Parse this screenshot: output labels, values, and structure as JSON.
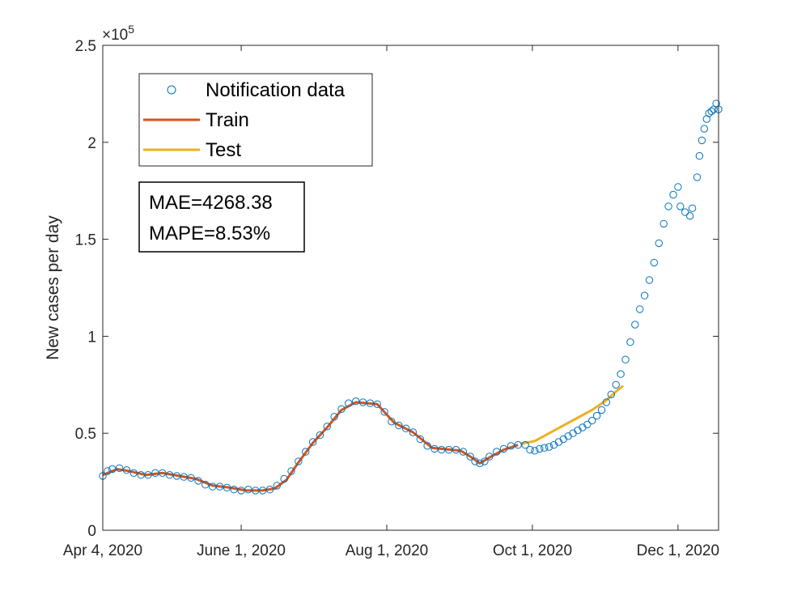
{
  "colors": {
    "notification": "#0072BD",
    "train": "#D95319",
    "test": "#EDB120",
    "axes": "#262626"
  },
  "chart_data": {
    "type": "line",
    "xlabel": "",
    "ylabel": "New cases per day",
    "y_exponent_label": "×10",
    "y_exponent_power": "5",
    "xlim": [
      "2020-04-04",
      "2020-12-18"
    ],
    "ylim": [
      0,
      250000
    ],
    "x_ticks": [
      {
        "date": "2020-04-04",
        "label": "Apr 4, 2020"
      },
      {
        "date": "2020-06-01",
        "label": "June 1, 2020"
      },
      {
        "date": "2020-08-01",
        "label": "Aug 1, 2020"
      },
      {
        "date": "2020-10-01",
        "label": "Oct 1, 2020"
      },
      {
        "date": "2020-12-01",
        "label": "Dec 1, 2020"
      }
    ],
    "y_ticks": [
      {
        "value": 0,
        "label": "0"
      },
      {
        "value": 50000,
        "label": "0.5"
      },
      {
        "value": 100000,
        "label": "1"
      },
      {
        "value": 150000,
        "label": "1.5"
      },
      {
        "value": 200000,
        "label": "2"
      },
      {
        "value": 250000,
        "label": "2.5"
      }
    ],
    "grid": false,
    "legend_position": "top-left",
    "metrics": {
      "mae": "MAE=4268.38",
      "mape": "MAPE=8.53%"
    },
    "series": [
      {
        "name": "Notification data",
        "style": "markers",
        "points": [
          [
            "2020-04-04",
            28000
          ],
          [
            "2020-04-06",
            30500
          ],
          [
            "2020-04-08",
            31500
          ],
          [
            "2020-04-11",
            32000
          ],
          [
            "2020-04-14",
            31000
          ],
          [
            "2020-04-17",
            29500
          ],
          [
            "2020-04-20",
            28500
          ],
          [
            "2020-04-23",
            28500
          ],
          [
            "2020-04-26",
            29500
          ],
          [
            "2020-04-29",
            29500
          ],
          [
            "2020-05-02",
            28500
          ],
          [
            "2020-05-05",
            28000
          ],
          [
            "2020-05-08",
            27500
          ],
          [
            "2020-05-11",
            27000
          ],
          [
            "2020-05-14",
            25500
          ],
          [
            "2020-05-17",
            23500
          ],
          [
            "2020-05-20",
            22500
          ],
          [
            "2020-05-23",
            22500
          ],
          [
            "2020-05-26",
            22000
          ],
          [
            "2020-05-29",
            21000
          ],
          [
            "2020-06-01",
            20500
          ],
          [
            "2020-06-04",
            21000
          ],
          [
            "2020-06-07",
            20500
          ],
          [
            "2020-06-10",
            20500
          ],
          [
            "2020-06-13",
            21000
          ],
          [
            "2020-06-16",
            23000
          ],
          [
            "2020-06-19",
            26500
          ],
          [
            "2020-06-22",
            30500
          ],
          [
            "2020-06-25",
            35500
          ],
          [
            "2020-06-28",
            40500
          ],
          [
            "2020-07-01",
            45500
          ],
          [
            "2020-07-04",
            49000
          ],
          [
            "2020-07-07",
            53500
          ],
          [
            "2020-07-10",
            58500
          ],
          [
            "2020-07-13",
            62500
          ],
          [
            "2020-07-16",
            65500
          ],
          [
            "2020-07-19",
            66500
          ],
          [
            "2020-07-22",
            66000
          ],
          [
            "2020-07-25",
            65500
          ],
          [
            "2020-07-28",
            65000
          ],
          [
            "2020-07-31",
            61000
          ],
          [
            "2020-08-03",
            56000
          ],
          [
            "2020-08-06",
            54000
          ],
          [
            "2020-08-09",
            52500
          ],
          [
            "2020-08-12",
            50500
          ],
          [
            "2020-08-15",
            47000
          ],
          [
            "2020-08-18",
            43500
          ],
          [
            "2020-08-21",
            42000
          ],
          [
            "2020-08-24",
            41500
          ],
          [
            "2020-08-27",
            41500
          ],
          [
            "2020-08-30",
            41500
          ],
          [
            "2020-09-02",
            40500
          ],
          [
            "2020-09-05",
            38000
          ],
          [
            "2020-09-07",
            35500
          ],
          [
            "2020-09-09",
            34500
          ],
          [
            "2020-09-11",
            35500
          ],
          [
            "2020-09-13",
            38000
          ],
          [
            "2020-09-16",
            40500
          ],
          [
            "2020-09-19",
            42000
          ],
          [
            "2020-09-22",
            43500
          ],
          [
            "2020-09-25",
            44000
          ],
          [
            "2020-09-28",
            44000
          ],
          [
            "2020-09-30",
            41500
          ],
          [
            "2020-10-02",
            41000
          ],
          [
            "2020-10-04",
            42000
          ],
          [
            "2020-10-06",
            42500
          ],
          [
            "2020-10-08",
            43000
          ],
          [
            "2020-10-10",
            44000
          ],
          [
            "2020-10-12",
            45500
          ],
          [
            "2020-10-14",
            47000
          ],
          [
            "2020-10-16",
            48500
          ],
          [
            "2020-10-18",
            50000
          ],
          [
            "2020-10-20",
            51500
          ],
          [
            "2020-10-22",
            53000
          ],
          [
            "2020-10-24",
            54500
          ],
          [
            "2020-10-26",
            56500
          ],
          [
            "2020-10-28",
            59000
          ],
          [
            "2020-10-30",
            62000
          ],
          [
            "2020-11-01",
            66000
          ],
          [
            "2020-11-03",
            70000
          ],
          [
            "2020-11-05",
            75000
          ],
          [
            "2020-11-07",
            80500
          ],
          [
            "2020-11-09",
            88000
          ],
          [
            "2020-11-11",
            97000
          ],
          [
            "2020-11-13",
            106000
          ],
          [
            "2020-11-15",
            114000
          ],
          [
            "2020-11-17",
            121000
          ],
          [
            "2020-11-19",
            129000
          ],
          [
            "2020-11-21",
            138000
          ],
          [
            "2020-11-23",
            148000
          ],
          [
            "2020-11-25",
            158000
          ],
          [
            "2020-11-27",
            167000
          ],
          [
            "2020-11-29",
            173000
          ],
          [
            "2020-12-01",
            177000
          ],
          [
            "2020-12-02",
            167000
          ],
          [
            "2020-12-04",
            164000
          ],
          [
            "2020-12-06",
            162000
          ],
          [
            "2020-12-07",
            166000
          ],
          [
            "2020-12-09",
            182000
          ],
          [
            "2020-12-10",
            193000
          ],
          [
            "2020-12-11",
            201000
          ],
          [
            "2020-12-12",
            207000
          ],
          [
            "2020-12-13",
            212000
          ],
          [
            "2020-12-14",
            215000
          ],
          [
            "2020-12-15",
            216000
          ],
          [
            "2020-12-16",
            217000
          ],
          [
            "2020-12-17",
            220000
          ],
          [
            "2020-12-18",
            217000
          ]
        ]
      },
      {
        "name": "Train",
        "style": "line",
        "points": [
          [
            "2020-04-04",
            28500
          ],
          [
            "2020-04-10",
            31500
          ],
          [
            "2020-04-15",
            30500
          ],
          [
            "2020-04-22",
            28500
          ],
          [
            "2020-04-29",
            29500
          ],
          [
            "2020-05-06",
            28000
          ],
          [
            "2020-05-13",
            26500
          ],
          [
            "2020-05-20",
            23000
          ],
          [
            "2020-05-27",
            22000
          ],
          [
            "2020-06-03",
            20500
          ],
          [
            "2020-06-10",
            20500
          ],
          [
            "2020-06-15",
            21500
          ],
          [
            "2020-06-20",
            26000
          ],
          [
            "2020-06-25",
            35000
          ],
          [
            "2020-07-01",
            45000
          ],
          [
            "2020-07-07",
            53000
          ],
          [
            "2020-07-13",
            62000
          ],
          [
            "2020-07-19",
            66000
          ],
          [
            "2020-07-28",
            65000
          ],
          [
            "2020-08-04",
            55500
          ],
          [
            "2020-08-12",
            50500
          ],
          [
            "2020-08-20",
            42500
          ],
          [
            "2020-09-01",
            41000
          ],
          [
            "2020-09-05",
            38000
          ],
          [
            "2020-09-09",
            34500
          ],
          [
            "2020-09-13",
            37500
          ],
          [
            "2020-09-19",
            41500
          ],
          [
            "2020-09-25",
            44000
          ]
        ]
      },
      {
        "name": "Test",
        "style": "line",
        "points": [
          [
            "2020-09-26",
            44500
          ],
          [
            "2020-10-02",
            46000
          ],
          [
            "2020-10-08",
            50000
          ],
          [
            "2020-10-14",
            54000
          ],
          [
            "2020-10-20",
            58000
          ],
          [
            "2020-10-26",
            62000
          ],
          [
            "2020-11-01",
            67000
          ],
          [
            "2020-11-05",
            71500
          ],
          [
            "2020-11-08",
            74500
          ]
        ]
      }
    ]
  }
}
